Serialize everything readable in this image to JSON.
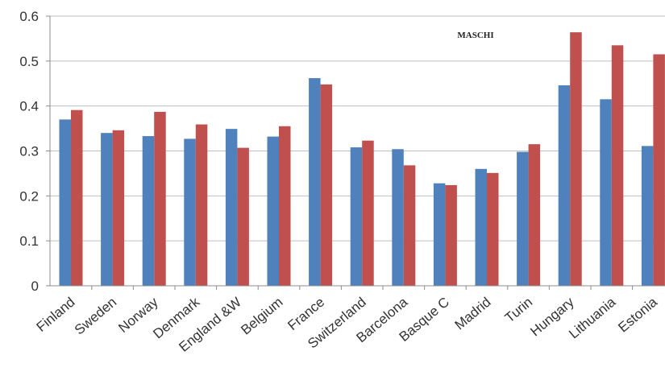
{
  "chart_data": {
    "type": "bar",
    "title": "MASCHI",
    "xlabel": "",
    "ylabel": "",
    "ylim": [
      0,
      0.6
    ],
    "yticks": [
      "0",
      "0.1",
      "0.2",
      "0.3",
      "0.4",
      "0.5",
      "0.6"
    ],
    "grid": true,
    "legend": "none",
    "categories": [
      "Finland",
      "Sweden",
      "Norway",
      "Denmark",
      "England &W",
      "Belgium",
      "France",
      "Switzerland",
      "Barcelona",
      "Basque C",
      "Madrid",
      "Turin",
      "Hungary",
      "Lithuania",
      "Estonia"
    ],
    "series": [
      {
        "color": "#4f81bd",
        "values": [
          0.37,
          0.34,
          0.333,
          0.327,
          0.349,
          0.332,
          0.462,
          0.308,
          0.304,
          0.228,
          0.26,
          0.298,
          0.446,
          0.415,
          0.311
        ]
      },
      {
        "color": "#c0504d",
        "values": [
          0.391,
          0.346,
          0.387,
          0.359,
          0.307,
          0.355,
          0.448,
          0.323,
          0.268,
          0.224,
          0.251,
          0.315,
          0.564,
          0.535,
          0.515
        ]
      }
    ]
  }
}
